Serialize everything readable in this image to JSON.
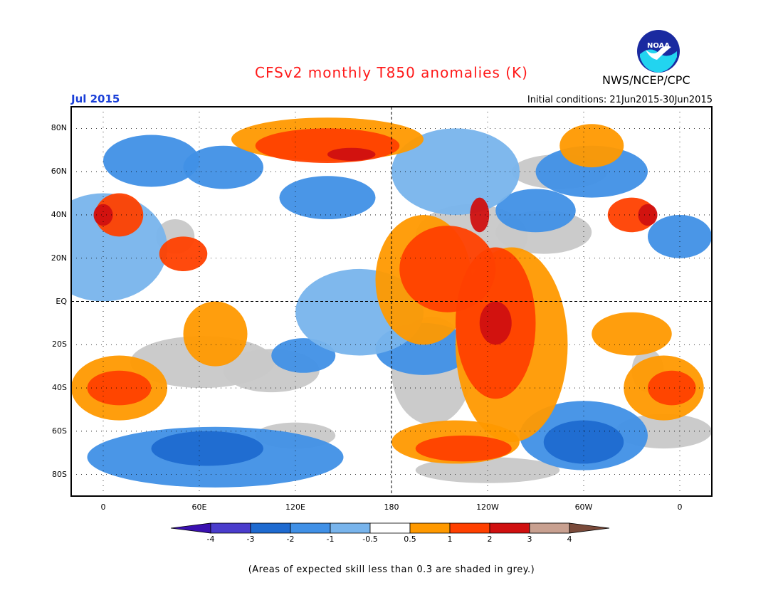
{
  "header": {
    "title": "CFSv2 monthly T850 anomalies (K)",
    "agency": "NWS/NCEP/CPC",
    "logo_text": "NOAA",
    "month": "Jul 2015",
    "initial_conditions": "Initial conditions: 21Jun2015-30Jun2015"
  },
  "colors": {
    "title": "#ff1a1a",
    "month": "#1a3fd8",
    "neg4": "#3a10b0",
    "neg3": "#4a3ccc",
    "neg2": "#1e6ad0",
    "neg1": "#4090e6",
    "neg05": "#78b4ec",
    "neutral": "#ffffff",
    "pos05": "#ff9900",
    "pos1": "#ff4000",
    "pos2": "#d01010",
    "pos3": "#a00000",
    "pos4": "#c8a090",
    "pos4end": "#7a4a3a",
    "skill_grey": "#c8c8c8"
  },
  "map": {
    "y_axis_labels": [
      "80N",
      "60N",
      "40N",
      "20N",
      "EQ",
      "20S",
      "40S",
      "60S",
      "80S"
    ],
    "x_axis_labels": [
      "0",
      "60E",
      "120E",
      "180",
      "120W",
      "60W",
      "0"
    ],
    "lat_range": [
      -90,
      90
    ],
    "lon_range": [
      -20,
      380
    ]
  },
  "colorbar": {
    "labels": [
      "-4",
      "-3",
      "-2",
      "-1",
      "-0.5",
      "0.5",
      "1",
      "2",
      "3",
      "4"
    ]
  },
  "footnote": "(Areas of expected skill less than 0.3 are shaded in grey.)"
}
